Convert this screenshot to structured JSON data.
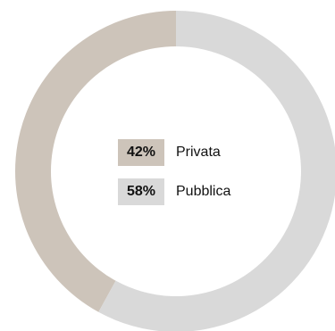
{
  "chart_data": {
    "type": "pie",
    "donut": true,
    "slices": [
      {
        "label": "Privata",
        "value": 42,
        "display": "42%",
        "color": "#cdc4ba"
      },
      {
        "label": "Pubblica",
        "value": 58,
        "display": "58%",
        "color": "#d9d9d9"
      }
    ]
  }
}
